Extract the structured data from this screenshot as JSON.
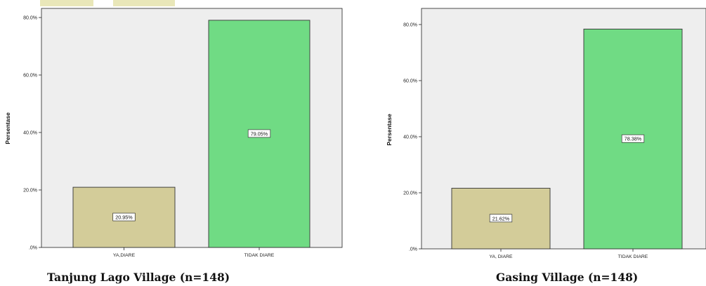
{
  "colors": {
    "plot_background": "#eeeeee",
    "bar_ya": "#d3cc99",
    "bar_tidak": "#70db84",
    "axis": "#222222",
    "label_box": "#ffffff"
  },
  "chart_data": [
    {
      "type": "bar",
      "title": "",
      "xlabel": "",
      "ylabel": "Persentase",
      "ylim": [
        0,
        0.8
      ],
      "yticks": [
        0,
        0.2,
        0.4,
        0.6,
        0.8
      ],
      "ytick_labels": [
        ".0%",
        "20.0%",
        "40.0%",
        "60.0%",
        "80.0%"
      ],
      "categories": [
        "YA,DIARE",
        "TIDAK DIARE"
      ],
      "values": [
        20.95,
        79.05
      ],
      "data_labels": [
        "20.95%",
        "79.05%"
      ],
      "bar_colors": [
        "#d3cc99",
        "#70db84"
      ],
      "grid": false,
      "caption": "Tanjung Lago Village (n=148)"
    },
    {
      "type": "bar",
      "title": "",
      "xlabel": "",
      "ylabel": "Persentase",
      "ylim": [
        0,
        0.8
      ],
      "yticks": [
        0,
        0.2,
        0.4,
        0.6,
        0.8
      ],
      "ytick_labels": [
        ".0%",
        "20.0%",
        "40.0%",
        "60.0%",
        "80.0%"
      ],
      "categories": [
        "YA, DIARE",
        "TIDAK DIARE"
      ],
      "values": [
        21.62,
        78.38
      ],
      "data_labels": [
        "21.62%",
        "78.38%"
      ],
      "bar_colors": [
        "#d3cc99",
        "#70db84"
      ],
      "grid": false,
      "caption": "Gasing Village (n=148)"
    }
  ]
}
